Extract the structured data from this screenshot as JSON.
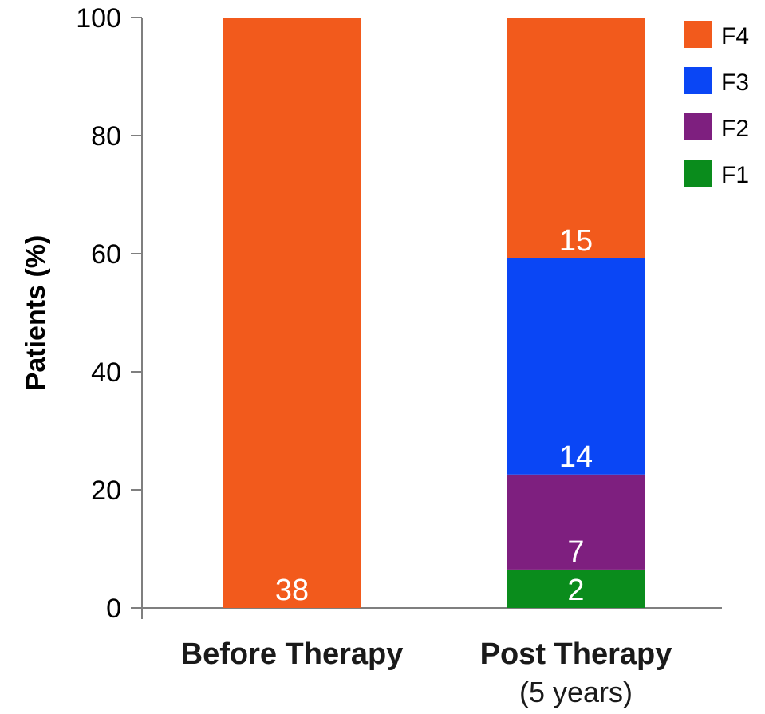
{
  "chart_data": {
    "type": "bar",
    "stacked": true,
    "ylabel": "Patients (%)",
    "ylim": [
      0,
      100
    ],
    "yticks": [
      0,
      20,
      40,
      60,
      80,
      100
    ],
    "grid": false,
    "legend_position": "top-right",
    "categories": [
      {
        "label": "Before Therapy",
        "sublabel": ""
      },
      {
        "label": "Post Therapy",
        "sublabel": "(5 years)"
      }
    ],
    "series": [
      {
        "name": "F1",
        "color": "#0a8c1c",
        "values": [
          0,
          6.5
        ],
        "data_labels": [
          "",
          "2"
        ]
      },
      {
        "name": "F2",
        "color": "#7e1f7f",
        "values": [
          0,
          16.1
        ],
        "data_labels": [
          "",
          "7"
        ]
      },
      {
        "name": "F3",
        "color": "#0a46f5",
        "values": [
          0,
          36.6
        ],
        "data_labels": [
          "",
          "14"
        ]
      },
      {
        "name": "F4",
        "color": "#f25a1c",
        "values": [
          100,
          40.8
        ],
        "data_labels": [
          "38",
          "15"
        ]
      }
    ]
  }
}
